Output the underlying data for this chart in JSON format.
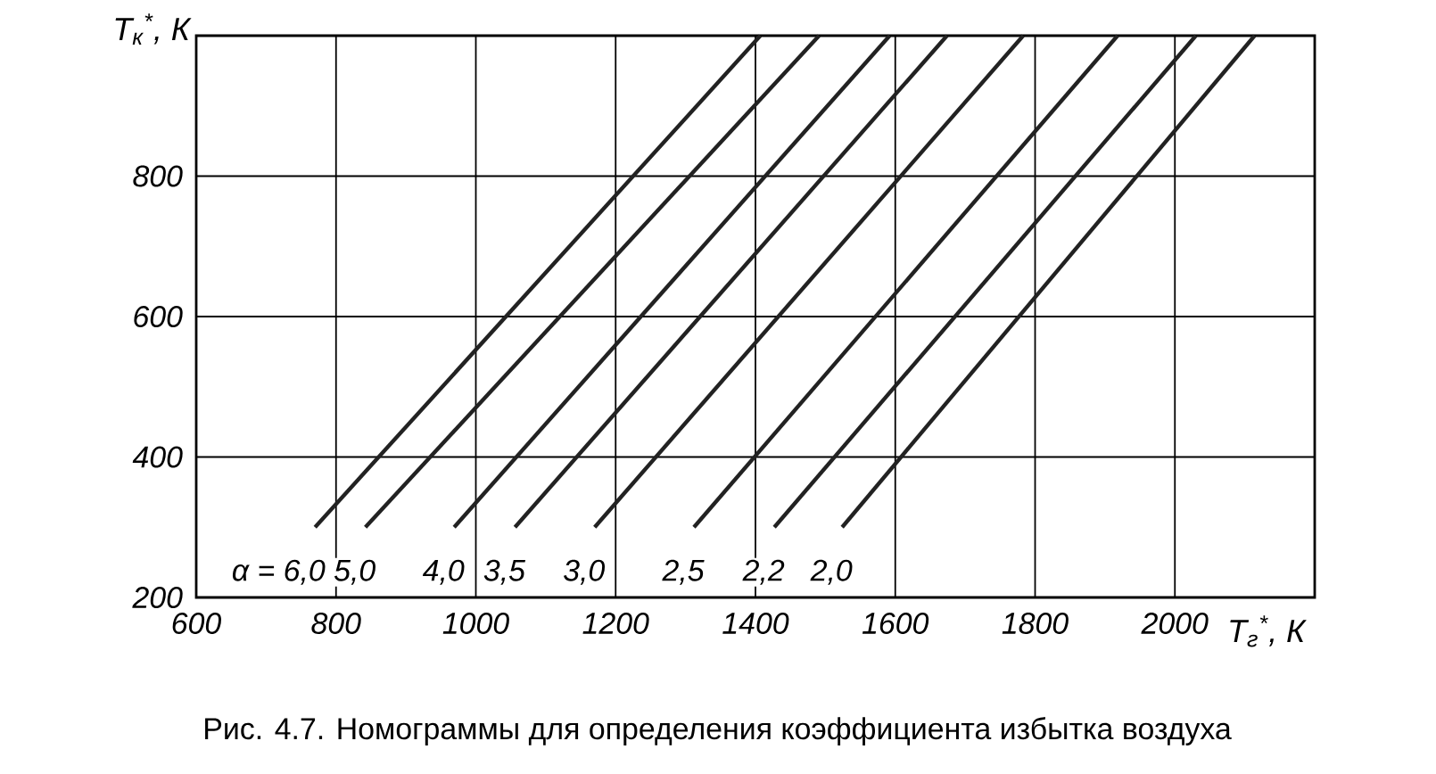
{
  "chart_data": {
    "type": "line",
    "xlabel": "T$_{г}$$^{*}$, К",
    "ylabel": "T$_{к}$$^{*}$, К",
    "xlim": [
      600,
      2200
    ],
    "ylim": [
      200,
      1000
    ],
    "xticks": [
      600,
      800,
      1000,
      1200,
      1400,
      1600,
      1800,
      2000
    ],
    "yticks": [
      200,
      400,
      600,
      800
    ],
    "grid": true,
    "legend": false,
    "marker": "none",
    "line_style": "solid",
    "series": [
      {
        "name": "α = 6,0",
        "color": "#222222",
        "x": [
          770,
          1407
        ],
        "values": [
          300,
          1000
        ]
      },
      {
        "name": "5,0",
        "color": "#222222",
        "x": [
          842,
          1491
        ],
        "values": [
          300,
          1000
        ]
      },
      {
        "name": "4,0",
        "color": "#222222",
        "x": [
          969,
          1592
        ],
        "values": [
          300,
          1000
        ]
      },
      {
        "name": "3,5",
        "color": "#222222",
        "x": [
          1056,
          1674
        ],
        "values": [
          300,
          1000
        ]
      },
      {
        "name": "3,0",
        "color": "#222222",
        "x": [
          1170,
          1783
        ],
        "values": [
          300,
          1000
        ]
      },
      {
        "name": "2,5",
        "color": "#222222",
        "x": [
          1312,
          1918
        ],
        "values": [
          300,
          1000
        ]
      },
      {
        "name": "2,2",
        "color": "#222222",
        "x": [
          1427,
          2030
        ],
        "values": [
          300,
          1000
        ]
      },
      {
        "name": "2,0",
        "color": "#222222",
        "x": [
          1524,
          2114
        ],
        "values": [
          300,
          1000
        ]
      }
    ],
    "annotations": [
      "Рис. 4.7. Номограммы для определения коэффициента избытка воздуха"
    ]
  }
}
